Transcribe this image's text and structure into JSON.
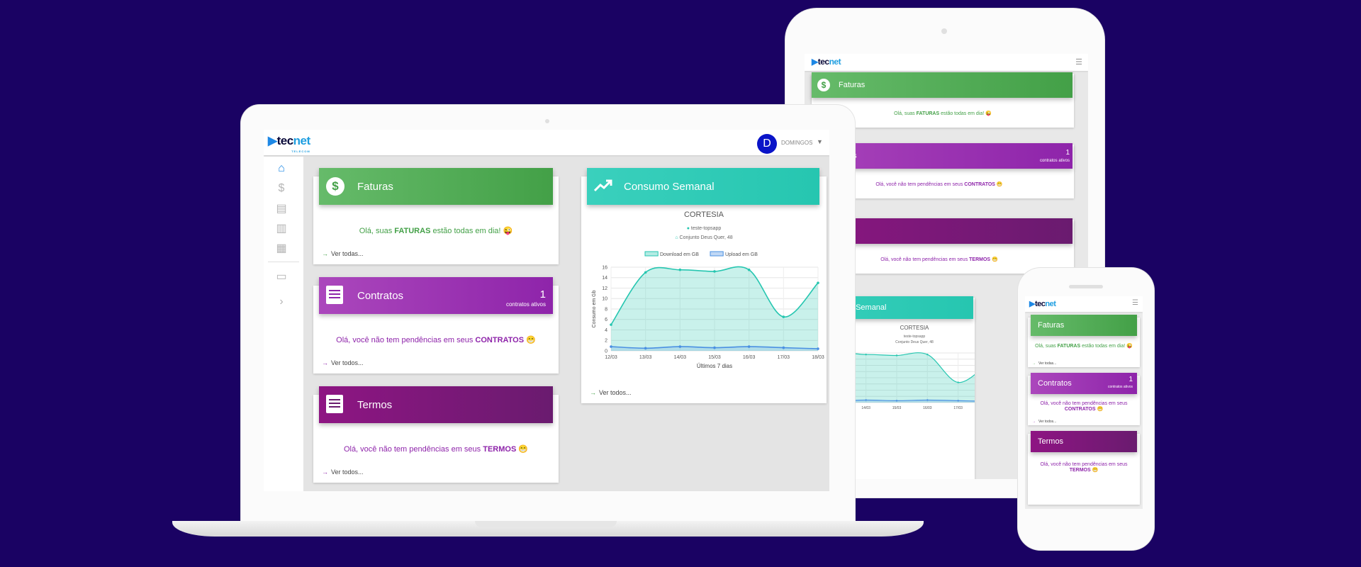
{
  "brand": {
    "logo_tec": "tec",
    "logo_net": "net",
    "logo_sub": "TELECOM"
  },
  "user": {
    "initial": "D",
    "name": "DOMINGOS"
  },
  "cards": {
    "faturas": {
      "title": "Faturas",
      "msg_pre": "Olá, suas ",
      "msg_bold": "FATURAS",
      "msg_post": " estão todas em dia! 😜",
      "link": "Ver todas..."
    },
    "contratos": {
      "title": "Contratos",
      "count": "1",
      "count_label": "contratos ativos",
      "msg_pre": "Olá, você não tem pendências em seus ",
      "msg_bold": "CONTRATOS",
      "msg_post": " 😁",
      "link": "Ver todos..."
    },
    "termos": {
      "title": "Termos",
      "msg_pre": "Olá, você não tem pendências em seus ",
      "msg_bold": "TERMOS",
      "msg_post": " 😁",
      "link": "Ver todos..."
    },
    "consumo": {
      "title": "Consumo Semanal",
      "plan": "CORTESIA",
      "login": "teste-topsapp",
      "address": "Conjunto Deus Quer, 48",
      "link": "Ver todos..."
    }
  },
  "tablet": {
    "consumo_title": "nsumo Semanal",
    "termos_title": "rmos",
    "contratos_title": "ntratos"
  },
  "chart_data": {
    "type": "area",
    "categories": [
      "12/03",
      "13/03",
      "14/03",
      "15/03",
      "16/03",
      "17/03",
      "18/03"
    ],
    "series": [
      {
        "name": "Download em GB",
        "values": [
          5,
          15,
          15.5,
          15.2,
          15.5,
          6.5,
          13
        ],
        "color": "#26c6b0"
      },
      {
        "name": "Upload em GB",
        "values": [
          0.8,
          0.5,
          0.8,
          0.6,
          0.8,
          0.6,
          0.4
        ],
        "color": "#4a90e2"
      }
    ],
    "xlabel": "Últimos 7 dias",
    "ylabel": "Consumo em Gb",
    "ylim": [
      0,
      16
    ],
    "yticks": [
      "0",
      "2",
      "4",
      "6",
      "8",
      "10",
      "12",
      "14",
      "16"
    ],
    "legend": "top",
    "grid": true
  },
  "colors": {
    "background": "#1a0263",
    "green": "#43a047",
    "purple": "#8e24aa",
    "dark_purple": "#6a1b6f",
    "teal": "#26c6b0",
    "avatar": "#0a14c8"
  },
  "icons": {
    "home": "home-icon",
    "dollar": "dollar-icon",
    "list": "list-icon",
    "chart": "bar-chart-icon",
    "news": "news-icon",
    "chat": "chat-icon",
    "chevron": "chevron-right-icon"
  }
}
